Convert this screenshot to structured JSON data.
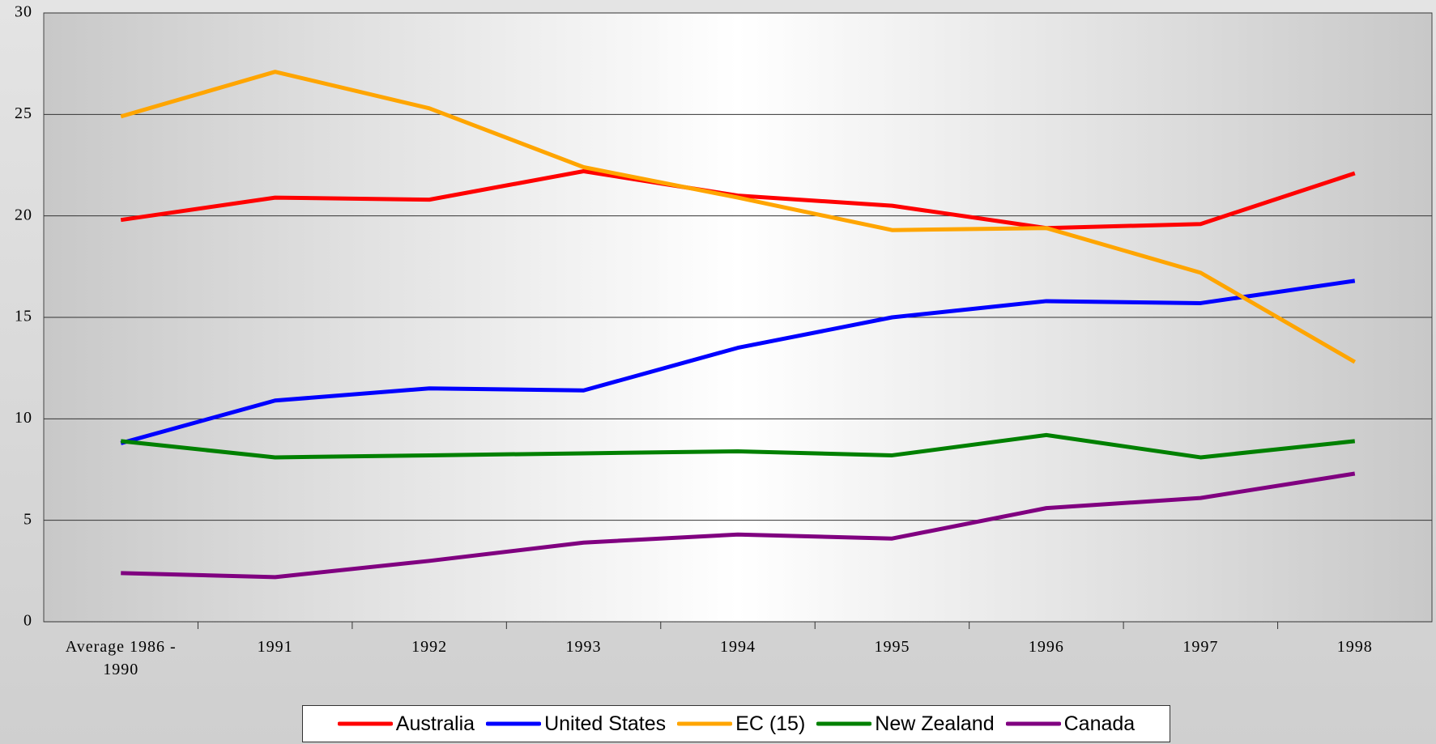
{
  "chart_data": {
    "type": "line",
    "categories": [
      "Average 1986 - 1990",
      "1991",
      "1992",
      "1993",
      "1994",
      "1995",
      "1996",
      "1997",
      "1998"
    ],
    "series": [
      {
        "name": "Australia",
        "color": "#ff0000",
        "values": [
          19.8,
          20.9,
          20.8,
          22.2,
          21.0,
          20.5,
          19.4,
          19.6,
          22.1
        ]
      },
      {
        "name": "United States",
        "color": "#0000ff",
        "values": [
          8.8,
          10.9,
          11.5,
          11.4,
          13.5,
          15.0,
          15.8,
          15.7,
          16.8
        ]
      },
      {
        "name": "EC (15)",
        "color": "#ffa500",
        "values": [
          24.9,
          27.1,
          25.3,
          22.4,
          20.9,
          19.3,
          19.4,
          17.2,
          12.8
        ]
      },
      {
        "name": "New Zealand",
        "color": "#008000",
        "values": [
          8.9,
          8.1,
          8.2,
          8.3,
          8.4,
          8.2,
          9.2,
          8.1,
          8.9
        ]
      },
      {
        "name": "Canada",
        "color": "#800080",
        "values": [
          2.4,
          2.2,
          3.0,
          3.9,
          4.3,
          4.1,
          5.6,
          6.1,
          7.3
        ]
      }
    ],
    "ylim": [
      0,
      30
    ],
    "yticks": [
      0,
      5,
      10,
      15,
      20,
      25,
      30
    ],
    "grid": true,
    "legend": "bottom"
  }
}
